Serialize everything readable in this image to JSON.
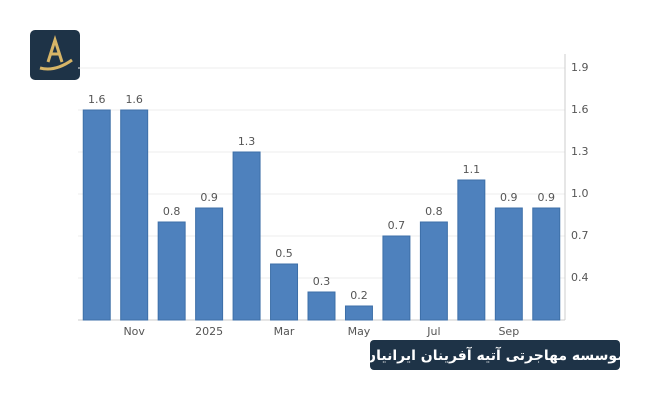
{
  "chart_data": {
    "type": "bar",
    "categories": [
      null,
      "Nov",
      null,
      "2025",
      null,
      "Mar",
      null,
      "May",
      null,
      "Jul",
      null,
      "Sep",
      null
    ],
    "values": [
      1.6,
      1.6,
      0.8,
      0.9,
      1.3,
      0.5,
      0.3,
      0.2,
      0.7,
      0.8,
      1.1,
      0.9,
      0.9
    ],
    "color": "#4e81bd",
    "ylim": [
      0.1,
      2.0
    ],
    "yticks": [
      0.4,
      0.7,
      {
        "value": 1,
        "label": "1.0"
      },
      1.3,
      1.6,
      1.9
    ],
    "grid": true,
    "y_axis_side": "right",
    "banner": "موسسه مهاجرتی آتیه آفرینان ایرانیان"
  }
}
